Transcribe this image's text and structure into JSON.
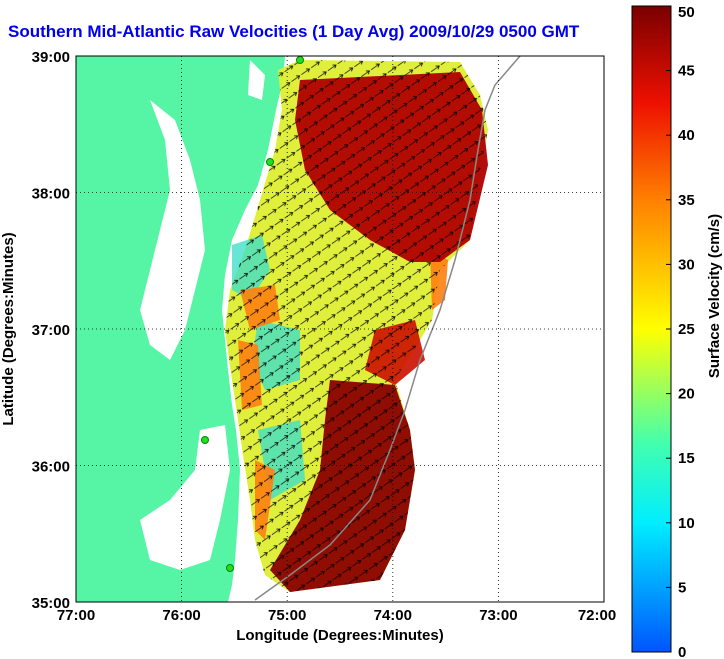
{
  "title": "Southern Mid-Atlantic Raw Velocities (1 Day Avg) 2009/10/29 0500 GMT",
  "xlabel": "Longitude (Degrees:Minutes)",
  "ylabel": "Latitude (Degrees:Minutes)",
  "x_ticks": [
    "77:00",
    "76:00",
    "75:00",
    "74:00",
    "73:00",
    "72:00"
  ],
  "y_ticks": [
    "39:00",
    "38:00",
    "37:00",
    "36:00",
    "35:00"
  ],
  "colorbar": {
    "label": "Surface Velocity (cm/s)",
    "ticks": [
      "0",
      "5",
      "10",
      "15",
      "20",
      "25",
      "30",
      "35",
      "40",
      "45",
      "50"
    ],
    "range": [
      0,
      50
    ],
    "units": "cm/s"
  },
  "colors": {
    "title": "#0000ee",
    "land": "#55f5a5",
    "water": "#ffffff",
    "grid": "#000000",
    "station": "#22dd22"
  }
}
